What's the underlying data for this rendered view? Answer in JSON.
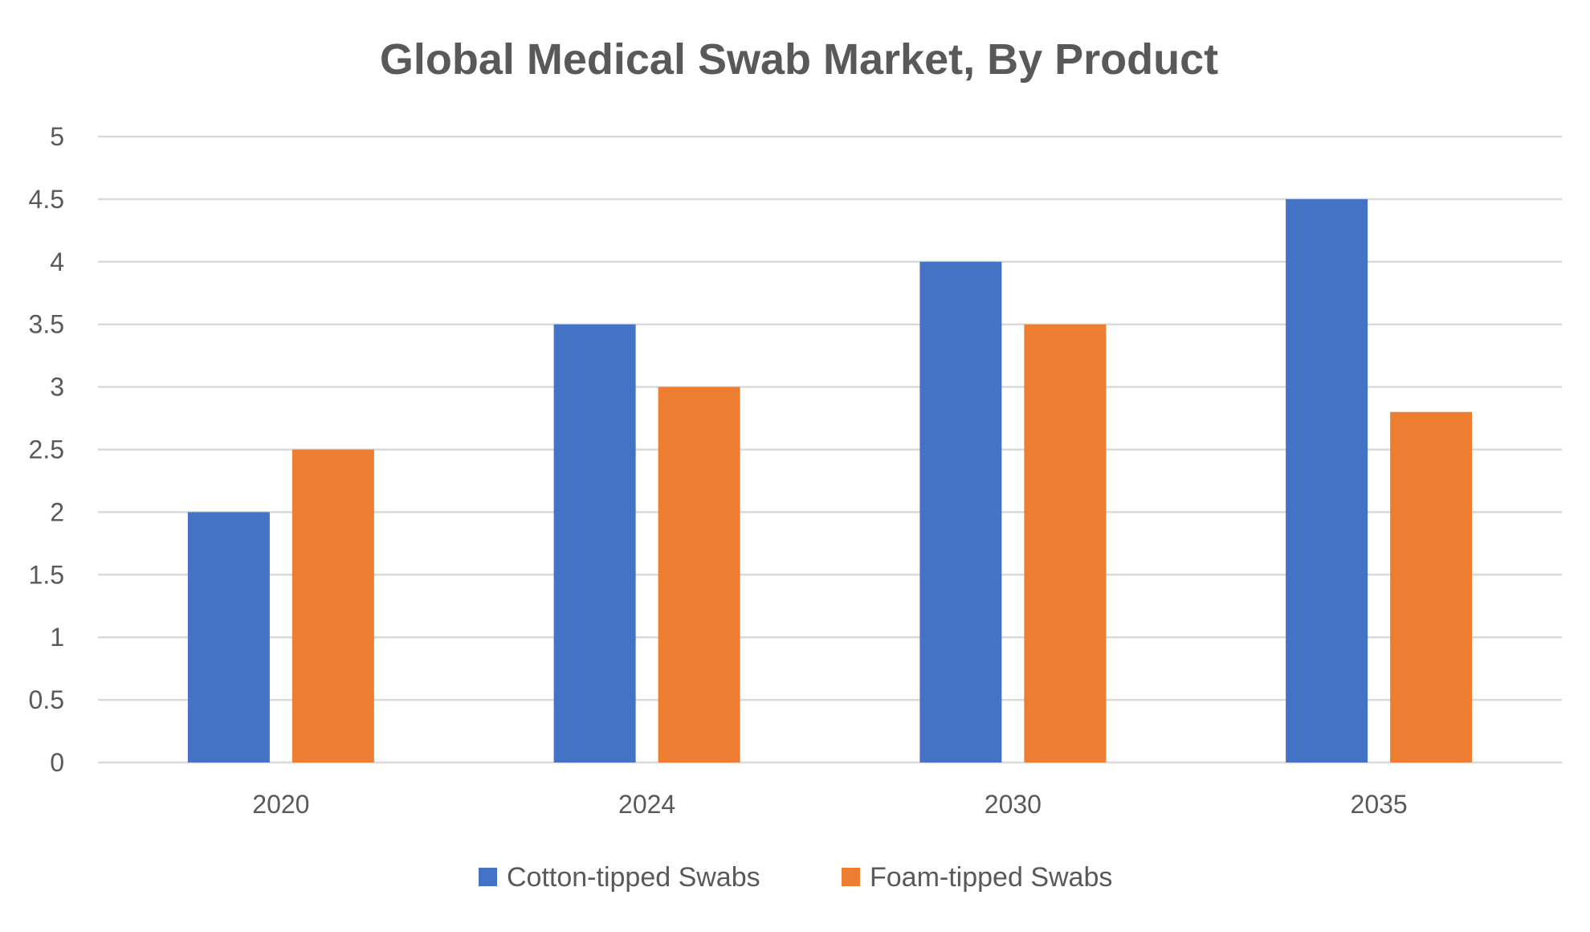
{
  "chart_data": {
    "type": "bar",
    "title": "Global Medical Swab Market, By Product",
    "xlabel": "",
    "ylabel": "",
    "categories": [
      "2020",
      "2024",
      "2030",
      "2035"
    ],
    "series": [
      {
        "name": "Cotton-tipped Swabs",
        "values": [
          2,
          3.5,
          4,
          4.5
        ],
        "color": "#4472c4"
      },
      {
        "name": "Foam-tipped Swabs",
        "values": [
          2.5,
          3,
          3.5,
          2.8
        ],
        "color": "#ed7d31"
      }
    ],
    "ylim": [
      0,
      5
    ],
    "yticks": [
      "0",
      "0.5",
      "1",
      "1.5",
      "2",
      "2.5",
      "3",
      "3.5",
      "4",
      "4.5",
      "5"
    ],
    "grid": true,
    "legend_position": "bottom"
  }
}
